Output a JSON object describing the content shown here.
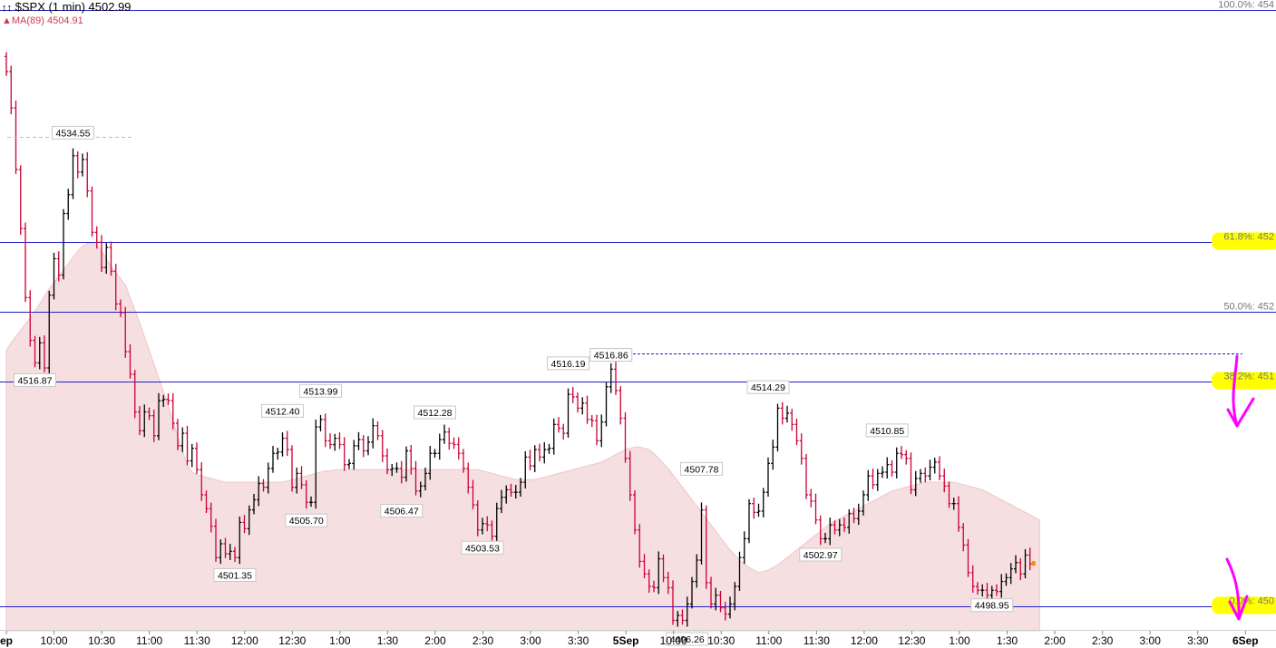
{
  "header": {
    "symbol_line": "$SPX (1 min) 4502.99",
    "ma_line": "MA(89) 4504.91"
  },
  "colors": {
    "fib_line": "#1f1fc8",
    "up_bar": "#000000",
    "down_bar": "#cc0033",
    "ma_fill": "#f6dfe0",
    "highlight": "#ffff00",
    "arrow": "#ff00ff"
  },
  "chart_data": {
    "type": "line",
    "title": "$SPX (1 min) 4502.99",
    "ylim": [
      4494.6,
      4546.2
    ],
    "fib_levels": [
      {
        "label": "100.0%: 454",
        "price": 4545.4,
        "highlight": false
      },
      {
        "label": "61.8%: 452",
        "price": 4526.9,
        "highlight": true
      },
      {
        "label": "50.0%: 452",
        "price": 4521.4,
        "highlight": false
      },
      {
        "label": "38.2%: 451",
        "price": 4515.8,
        "highlight": true
      },
      {
        "label": "0.0%: 450",
        "price": 4497.9,
        "highlight": true
      }
    ],
    "x_ticks": [
      "ep",
      "10:00",
      "10:30",
      "11:00",
      "11:30",
      "12:00",
      "12:30",
      "1:00",
      "1:30",
      "2:00",
      "2:30",
      "3:00",
      "3:30",
      "5Sep",
      "10:00",
      "10:30",
      "11:00",
      "11:30",
      "12:00",
      "12:30",
      "1:00",
      "1:30",
      "2:00",
      "2:30",
      "3:00",
      "3:30",
      "6Sep"
    ],
    "bold_ticks": [
      "ep",
      "5Sep",
      "6Sep"
    ],
    "price_labels": [
      {
        "text": "4534.55",
        "idx": 14,
        "price": 4534.55,
        "pos": "above"
      },
      {
        "text": "4516.87",
        "idx": 6,
        "price": 4516.87,
        "pos": "below"
      },
      {
        "text": "4501.35",
        "idx": 48,
        "price": 4501.35,
        "pos": "below"
      },
      {
        "text": "4512.40",
        "idx": 58,
        "price": 4512.4,
        "pos": "above"
      },
      {
        "text": "4505.70",
        "idx": 63,
        "price": 4505.7,
        "pos": "below"
      },
      {
        "text": "4513.99",
        "idx": 66,
        "price": 4513.99,
        "pos": "above"
      },
      {
        "text": "4506.47",
        "idx": 83,
        "price": 4506.47,
        "pos": "below"
      },
      {
        "text": "4512.28",
        "idx": 90,
        "price": 4512.28,
        "pos": "above"
      },
      {
        "text": "4503.53",
        "idx": 100,
        "price": 4503.53,
        "pos": "below"
      },
      {
        "text": "4516.19",
        "idx": 118,
        "price": 4516.19,
        "pos": "above"
      },
      {
        "text": "4516.86",
        "idx": 127,
        "price": 4516.86,
        "pos": "above"
      },
      {
        "text": "4507.78",
        "idx": 146,
        "price": 4507.78,
        "pos": "above"
      },
      {
        "text": "4496.26",
        "idx": 143,
        "price": 4496.26,
        "pos": "below"
      },
      {
        "text": "4514.29",
        "idx": 160,
        "price": 4514.29,
        "pos": "above"
      },
      {
        "text": "4502.97",
        "idx": 171,
        "price": 4502.97,
        "pos": "below"
      },
      {
        "text": "4510.85",
        "idx": 185,
        "price": 4510.85,
        "pos": "above"
      },
      {
        "text": "4498.95",
        "idx": 207,
        "price": 4498.95,
        "pos": "below"
      }
    ],
    "closes": [
      4540.5,
      4537.6,
      4532.7,
      4528.0,
      4522.5,
      4519.1,
      4517.3,
      4518.9,
      4516.9,
      4522.7,
      4525.6,
      4524.3,
      4529.2,
      4530.7,
      4533.8,
      4532.5,
      4533.5,
      4531.0,
      4527.7,
      4526.9,
      4524.9,
      4526.5,
      4524.6,
      4522.0,
      4521.3,
      4518.2,
      4516.4,
      4513.4,
      4511.9,
      4513.4,
      4513.1,
      4511.5,
      4514.3,
      4514.4,
      4514.3,
      4512.5,
      4510.7,
      4511.7,
      4509.5,
      4510.5,
      4508.8,
      4506.8,
      4505.7,
      4504.3,
      4501.8,
      4502.9,
      4502.1,
      4502.3,
      4501.8,
      4504.6,
      4504.1,
      4505.6,
      4506.4,
      4507.7,
      4507.4,
      4508.9,
      4510.1,
      4510.2,
      4511.3,
      4510.4,
      4507.4,
      4508.5,
      4507.6,
      4506.2,
      4506.2,
      4512.2,
      4512.8,
      4511.1,
      4510.8,
      4511.3,
      4510.8,
      4509.2,
      4509.3,
      4510.7,
      4511.2,
      4510.3,
      4511.0,
      4512.3,
      4511.5,
      4509.9,
      4508.8,
      4508.9,
      4508.9,
      4508.2,
      4510.3,
      4508.9,
      4507.1,
      4507.5,
      4508.5,
      4510.1,
      4510.1,
      4511.2,
      4511.8,
      4510.9,
      4510.8,
      4510.1,
      4508.9,
      4507.4,
      4506.0,
      4504.0,
      4504.5,
      4504.4,
      4503.5,
      4505.7,
      4506.6,
      4507.2,
      4507.0,
      4507.0,
      4507.8,
      4509.8,
      4509.1,
      4510.4,
      4509.8,
      4510.4,
      4510.5,
      4512.4,
      4512.1,
      4511.7,
      4514.8,
      4514.6,
      4513.7,
      4514.1,
      4512.8,
      4512.7,
      4511.1,
      4512.6,
      4515.4,
      4516.8,
      4515.1,
      4512.9,
      4509.7,
      4506.8,
      4504.0,
      4501.5,
      4500.5,
      4499.5,
      4499.4,
      4501.7,
      4500.2,
      4499.4,
      4496.8,
      4497.2,
      4496.8,
      4498.1,
      4499.9,
      4501.6,
      4505.6,
      4499.8,
      4498.1,
      4498.8,
      4497.8,
      4497.3,
      4498.1,
      4499.5,
      4501.8,
      4503.3,
      4506.1,
      4505.4,
      4505.5,
      4507.0,
      4509.3,
      4510.6,
      4513.7,
      4512.9,
      4513.3,
      4512.4,
      4511.1,
      4509.7,
      4506.8,
      4506.3,
      4504.8,
      4503.3,
      4503.3,
      4504.4,
      4504.0,
      4504.4,
      4504.2,
      4505.3,
      4504.9,
      4505.5,
      4506.8,
      4508.3,
      4507.6,
      4508.5,
      4508.6,
      4509.2,
      4508.6,
      4510.1,
      4510.0,
      4509.7,
      4507.2,
      4508.1,
      4508.5,
      4508.3,
      4509.0,
      4509.4,
      4508.3,
      4507.5,
      4506.1,
      4506.1,
      4504.2,
      4502.8,
      4500.6,
      4499.5,
      4499.2,
      4499.2,
      4498.8,
      4499.2,
      4499.1,
      4499.9,
      4500.2,
      4500.9,
      4501.4,
      4500.5,
      4502.0,
      4501.3
    ],
    "ma": [
      4518.3,
      4518.9,
      4519.4,
      4519.9,
      4520.4,
      4520.9,
      4521.4,
      4522.0,
      4522.6,
      4523.2,
      4523.7,
      4524.2,
      4524.7,
      4525.2,
      4525.7,
      4526.2,
      4526.6,
      4526.8,
      4526.9,
      4526.7,
      4526.2,
      4525.6,
      4525.0,
      4524.5,
      4524.0,
      4523.5,
      4522.5,
      4521.5,
      4520.5,
      4519.4,
      4518.3,
      4517.2,
      4516.1,
      4515.0,
      4513.9,
      4512.7,
      4511.4,
      4510.3,
      4509.2,
      4508.6,
      4508.4,
      4508.3,
      4508.2,
      4508.1,
      4508.0,
      4507.9,
      4507.8,
      4507.8,
      4507.8,
      4507.8,
      4507.8,
      4507.8,
      4507.8,
      4507.8,
      4507.8,
      4507.8,
      4507.8,
      4507.8,
      4507.8,
      4507.9,
      4508.0,
      4508.1,
      4508.2,
      4508.3,
      4508.4,
      4508.5,
      4508.6,
      4508.7,
      4508.7,
      4508.8,
      4508.8,
      4508.8,
      4508.8,
      4508.8,
      4508.8,
      4508.8,
      4508.8,
      4508.8,
      4508.8,
      4508.8,
      4508.8,
      4508.8,
      4508.8,
      4508.8,
      4508.8,
      4508.8,
      4508.8,
      4508.8,
      4508.8,
      4508.8,
      4508.8,
      4508.8,
      4508.8,
      4508.8,
      4508.8,
      4508.8,
      4508.8,
      4508.8,
      4508.8,
      4508.8,
      4508.7,
      4508.6,
      4508.5,
      4508.4,
      4508.3,
      4508.2,
      4508.1,
      4508.0,
      4508.0,
      4508.0,
      4508.0,
      4508.0,
      4508.1,
      4508.2,
      4508.3,
      4508.4,
      4508.5,
      4508.6,
      4508.7,
      4508.8,
      4508.9,
      4509.0,
      4509.1,
      4509.2,
      4509.3,
      4509.4,
      4509.6,
      4509.8,
      4510.0,
      4510.2,
      4510.4,
      4510.5,
      4510.6,
      4510.6,
      4510.5,
      4510.4,
      4510.1,
      4509.7,
      4509.3,
      4508.9,
      4508.4,
      4507.9,
      4507.4,
      4506.9,
      4506.4,
      4505.9,
      4505.4,
      4504.9,
      4504.4,
      4503.9,
      4503.4,
      4502.9,
      4502.4,
      4502.0,
      4501.6,
      4501.3,
      4501.0,
      4500.8,
      4500.6,
      4500.7,
      4500.8,
      4501.0,
      4501.2,
      4501.5,
      4501.8,
      4502.1,
      4502.4,
      4502.7,
      4503.0,
      4503.3,
      4503.6,
      4503.9,
      4504.2,
      4504.5,
      4504.7,
      4504.9,
      4505.1,
      4505.3,
      4505.5,
      4505.7,
      4505.9,
      4506.1,
      4506.3,
      4506.5,
      4506.7,
      4506.9,
      4507.1,
      4507.2,
      4507.3,
      4507.4,
      4507.5,
      4507.6,
      4507.7,
      4507.8,
      4507.8,
      4507.8,
      4507.8,
      4507.8,
      4507.8,
      4507.8,
      4507.7,
      4507.6,
      4507.5,
      4507.4,
      4507.3,
      4507.2,
      4507.0,
      4506.8,
      4506.6,
      4506.4,
      4506.2,
      4506.0,
      4505.8,
      4505.6,
      4505.4,
      4505.2,
      4505.0,
      4504.8
    ]
  }
}
